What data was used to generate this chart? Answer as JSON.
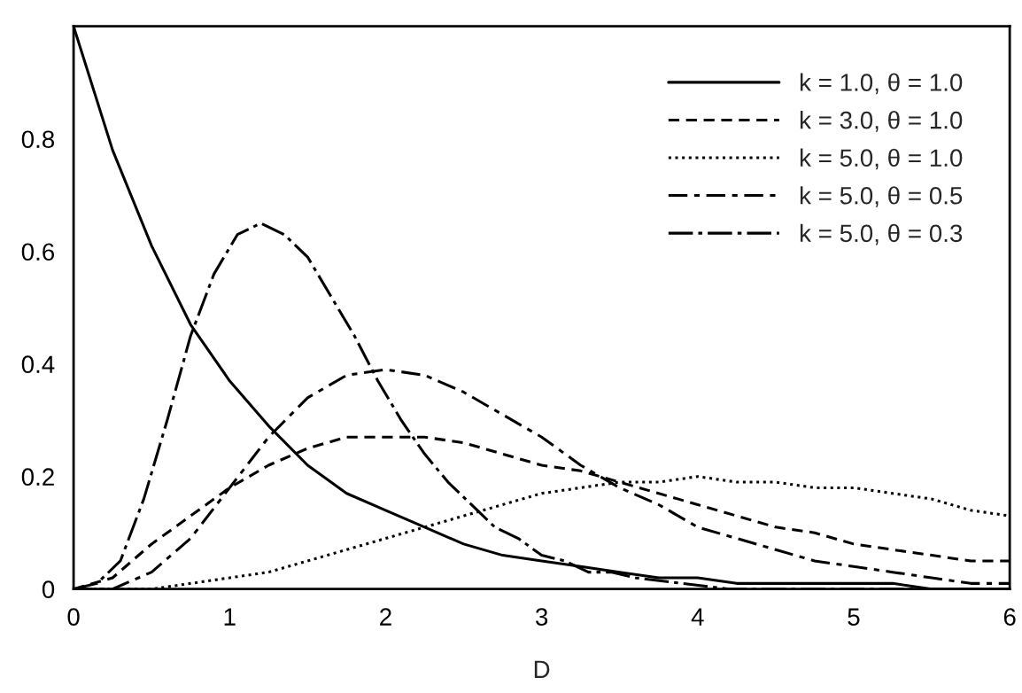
{
  "chart_data": {
    "type": "line",
    "xlabel": "D",
    "xlim": [
      0,
      6
    ],
    "xticks": [
      0,
      1,
      2,
      3,
      4,
      5,
      6
    ],
    "ylim": [
      0,
      1
    ],
    "yticks": [
      0,
      0.2,
      0.4,
      0.6,
      0.8
    ],
    "grid": false,
    "legend": "top right",
    "marker": "none",
    "x": [
      0,
      0.25,
      0.5,
      0.75,
      1,
      1.25,
      1.5,
      1.75,
      2,
      2.25,
      2.5,
      2.75,
      3,
      3.25,
      3.5,
      3.75,
      4,
      4.25,
      4.5,
      4.75,
      5,
      5.25,
      5.5,
      5.75,
      6
    ],
    "series": [
      {
        "name": "k = 1.0, θ = 1.0",
        "color": "#000000",
        "line_style": "solid",
        "values": [
          1.0,
          0.78,
          0.61,
          0.47,
          0.37,
          0.29,
          0.22,
          0.17,
          0.14,
          0.11,
          0.08,
          0.06,
          0.05,
          0.04,
          0.03,
          0.02,
          0.02,
          0.01,
          0.01,
          0.01,
          0.01,
          0.01,
          0,
          0,
          0
        ]
      },
      {
        "name": "k = 3.0, θ = 1.0",
        "color": "#000000",
        "line_style": "dashed",
        "values": [
          0,
          0.02,
          0.08,
          0.13,
          0.18,
          0.22,
          0.25,
          0.27,
          0.27,
          0.27,
          0.26,
          0.24,
          0.22,
          0.21,
          0.19,
          0.17,
          0.15,
          0.13,
          0.11,
          0.1,
          0.08,
          0.07,
          0.06,
          0.05,
          0.05
        ]
      },
      {
        "name": "k = 5.0, θ = 1.0",
        "color": "#000000",
        "line_style": "dotted",
        "values": [
          0,
          0,
          0,
          0.01,
          0.02,
          0.03,
          0.05,
          0.07,
          0.09,
          0.11,
          0.13,
          0.15,
          0.17,
          0.18,
          0.19,
          0.19,
          0.2,
          0.19,
          0.19,
          0.18,
          0.18,
          0.17,
          0.16,
          0.14,
          0.13
        ]
      },
      {
        "name": "k = 5.0, θ = 0.5",
        "color": "#000000",
        "line_style": "longdashdot",
        "values": [
          0,
          0,
          0.03,
          0.09,
          0.18,
          0.27,
          0.34,
          0.38,
          0.39,
          0.38,
          0.35,
          0.31,
          0.27,
          0.22,
          0.18,
          0.15,
          0.11,
          0.09,
          0.07,
          0.05,
          0.04,
          0.03,
          0.02,
          0.01,
          0.01
        ]
      },
      {
        "name": "k = 5.0, θ = 0.3",
        "color": "#000000",
        "line_style": "dashdot",
        "x": [
          0,
          0.15,
          0.3,
          0.45,
          0.6,
          0.75,
          0.9,
          1.05,
          1.2,
          1.35,
          1.5,
          1.65,
          1.8,
          1.95,
          2.1,
          2.25,
          2.4,
          2.55,
          2.7,
          2.85,
          3.0,
          3.15,
          3.3,
          3.45,
          3.6,
          3.9,
          4.2,
          4.5,
          5,
          6
        ],
        "values": [
          0,
          0.01,
          0.05,
          0.16,
          0.3,
          0.45,
          0.56,
          0.63,
          0.65,
          0.63,
          0.59,
          0.52,
          0.45,
          0.37,
          0.3,
          0.24,
          0.19,
          0.15,
          0.11,
          0.09,
          0.06,
          0.05,
          0.03,
          0.03,
          0.02,
          0.01,
          0,
          0,
          0,
          0
        ]
      }
    ]
  }
}
